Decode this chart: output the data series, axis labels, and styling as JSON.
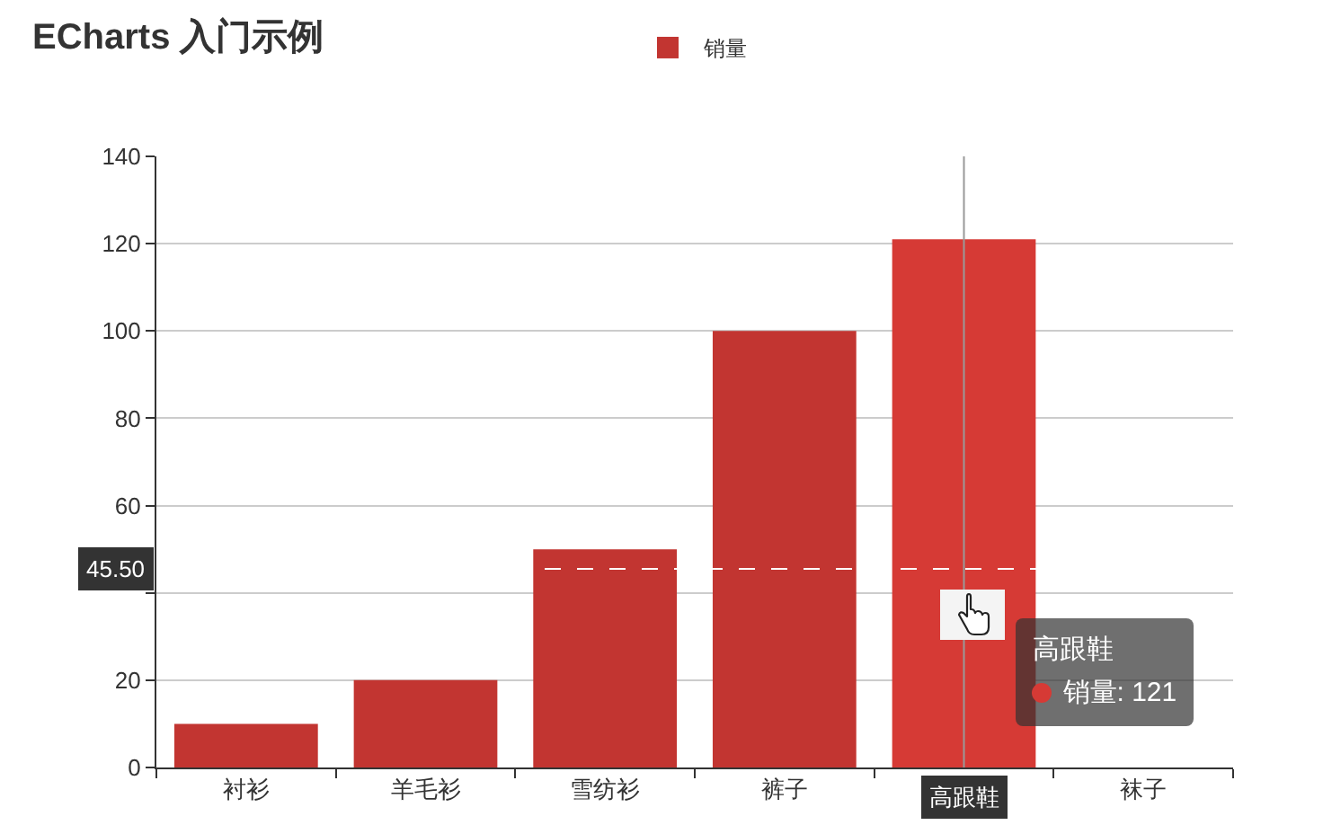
{
  "chart_data": {
    "type": "bar",
    "title": "ECharts 入门示例",
    "categories": [
      "衬衫",
      "羊毛衫",
      "雪纺衫",
      "裤子",
      "高跟鞋",
      "袜子"
    ],
    "series": [
      {
        "name": "销量",
        "colors": [
          "#c23531",
          "#c23531",
          "#c23531",
          "#c23531",
          "#d63a35",
          "#c23531"
        ],
        "values": [
          10,
          20,
          50,
          100,
          121,
          null
        ]
      }
    ],
    "ylim": [
      0,
      140
    ],
    "yticks": [
      0,
      20,
      {
        "value": 40,
        "label": null
      },
      60,
      80,
      100,
      120,
      140
    ],
    "grid": "y",
    "legend": "top",
    "ref_lines": [
      {
        "axis": "y",
        "value": 45.5,
        "label": "45.50",
        "color": "#ffffff",
        "line_style": "dashed"
      },
      {
        "axis": "x",
        "value": "高跟鞋",
        "color": "#999999",
        "line_style": "solid"
      }
    ],
    "annotations": [
      "销量: 121"
    ]
  }
}
